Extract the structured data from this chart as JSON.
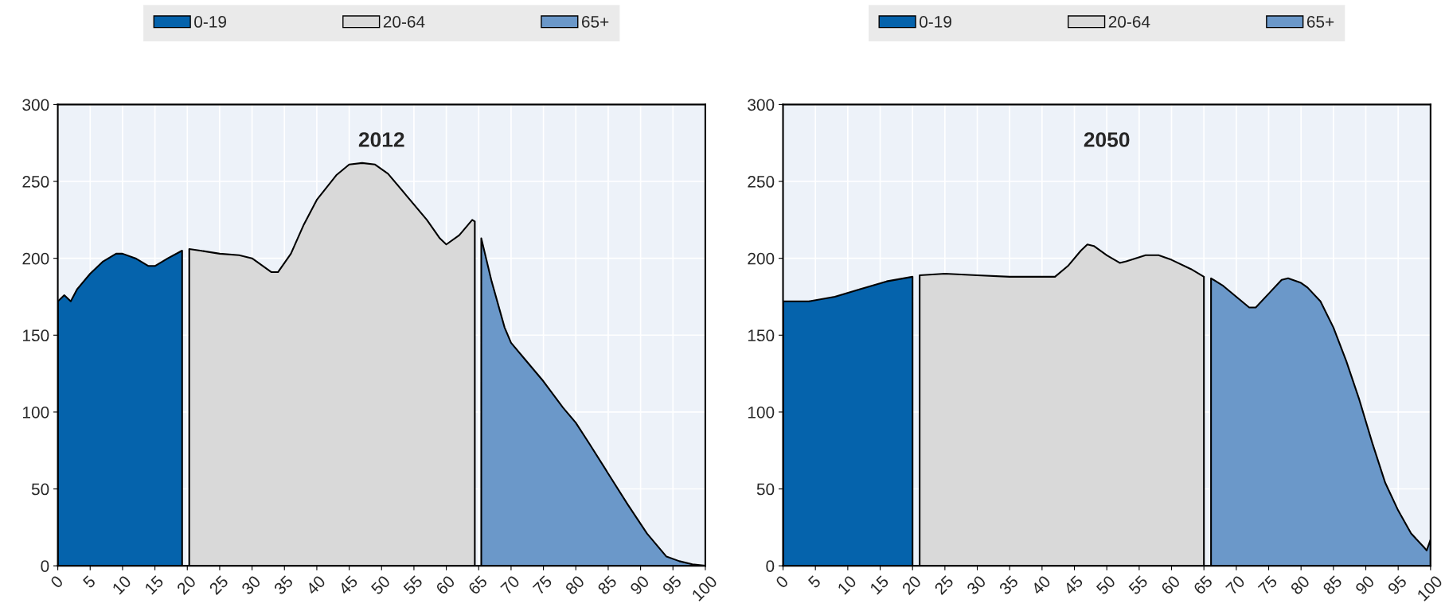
{
  "chart_data": [
    {
      "type": "area",
      "title": "2012",
      "xlim": [
        0,
        100
      ],
      "xticks": [
        0,
        5,
        10,
        15,
        20,
        25,
        30,
        35,
        40,
        45,
        50,
        55,
        60,
        65,
        70,
        75,
        80,
        85,
        90,
        95,
        100
      ],
      "ylim": [
        0,
        300
      ],
      "yticks": [
        0,
        50,
        100,
        150,
        200,
        250,
        300
      ],
      "grid": true,
      "legend": "top",
      "series": [
        {
          "name": "0-19",
          "color": "#0563ac",
          "x": [
            0,
            1,
            2,
            3,
            5,
            7,
            9,
            10,
            12,
            14,
            15,
            17,
            19.2
          ],
          "values": [
            172,
            176,
            172,
            180,
            190,
            198,
            203,
            203,
            200,
            195,
            195,
            200,
            205
          ]
        },
        {
          "name": "20-64",
          "color": "#d9d9d9",
          "x": [
            20.3,
            22,
            25,
            28,
            30,
            33,
            34,
            36,
            38,
            40,
            43,
            45,
            47,
            49,
            51,
            54,
            57,
            59,
            60,
            62,
            64,
            64.4
          ],
          "values": [
            206,
            205,
            203,
            202,
            200,
            191,
            191,
            203,
            222,
            238,
            254,
            261,
            262,
            261,
            255,
            240,
            225,
            213,
            209,
            215,
            225,
            224
          ]
        },
        {
          "name": "65+",
          "color": "#6b98c9",
          "x": [
            65.4,
            67,
            69,
            70,
            72,
            75,
            78,
            80,
            82,
            85,
            88,
            91,
            94,
            96,
            98,
            100
          ],
          "values": [
            213,
            185,
            155,
            145,
            135,
            120,
            103,
            93,
            80,
            60,
            40,
            21,
            6,
            3,
            1,
            0
          ]
        }
      ]
    },
    {
      "type": "area",
      "title": "2050",
      "xlim": [
        0,
        100
      ],
      "xticks": [
        0,
        5,
        10,
        15,
        20,
        25,
        30,
        35,
        40,
        45,
        50,
        55,
        60,
        65,
        70,
        75,
        80,
        85,
        90,
        95,
        100
      ],
      "ylim": [
        0,
        300
      ],
      "yticks": [
        0,
        50,
        100,
        150,
        200,
        250,
        300
      ],
      "grid": true,
      "legend": "top",
      "series": [
        {
          "name": "0-19",
          "color": "#0563ac",
          "x": [
            0,
            4,
            8,
            12,
            16,
            20
          ],
          "values": [
            172,
            172,
            175,
            180,
            185,
            188
          ]
        },
        {
          "name": "20-64",
          "color": "#d9d9d9",
          "x": [
            21.1,
            25,
            30,
            35,
            42,
            44,
            46,
            47,
            48,
            50,
            52,
            53,
            56,
            58,
            60,
            63,
            65
          ],
          "values": [
            189,
            190,
            189,
            188,
            188,
            195,
            205,
            209,
            208,
            202,
            197,
            198,
            202,
            202,
            199,
            193,
            188
          ]
        },
        {
          "name": "65+",
          "color": "#6b98c9",
          "x": [
            66.1,
            68,
            70,
            72,
            73,
            75,
            77,
            78,
            80,
            81,
            83,
            85,
            87,
            89,
            91,
            93,
            95,
            97,
            99,
            99.4,
            100
          ],
          "values": [
            187,
            182,
            175,
            168,
            168,
            177,
            186,
            187,
            184,
            181,
            172,
            155,
            133,
            108,
            80,
            54,
            36,
            21,
            12,
            10,
            17
          ]
        }
      ]
    }
  ]
}
